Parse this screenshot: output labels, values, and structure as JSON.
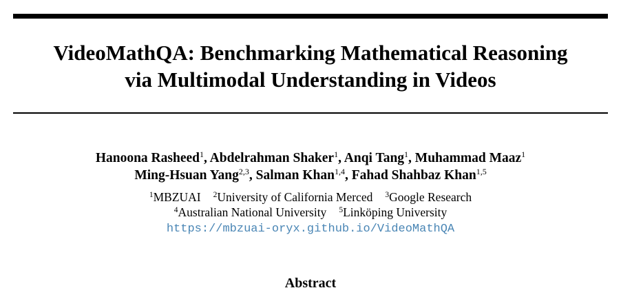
{
  "title": {
    "line1": "VideoMathQA: Benchmarking Mathematical Reasoning",
    "line2": "via Multimodal Understanding in Videos"
  },
  "authors": {
    "line1": [
      {
        "name": "Hanoona Rasheed",
        "aff": "1",
        "sep": ", "
      },
      {
        "name": "Abdelrahman Shaker",
        "aff": "1",
        "sep": ", "
      },
      {
        "name": "Anqi Tang",
        "aff": "1",
        "sep": ", "
      },
      {
        "name": "Muhammad Maaz",
        "aff": "1",
        "sep": ""
      }
    ],
    "line2": [
      {
        "name": "Ming-Hsuan Yang",
        "aff": "2,3",
        "sep": ", "
      },
      {
        "name": "Salman Khan",
        "aff": "1,4",
        "sep": ", "
      },
      {
        "name": "Fahad Shahbaz Khan",
        "aff": "1,5",
        "sep": ""
      }
    ]
  },
  "affiliations": {
    "line1": [
      {
        "num": "1",
        "name": "MBZUAI"
      },
      {
        "num": "2",
        "name": "University of California Merced"
      },
      {
        "num": "3",
        "name": "Google Research"
      }
    ],
    "line2": [
      {
        "num": "4",
        "name": "Australian National University"
      },
      {
        "num": "5",
        "name": "Linköping University"
      }
    ]
  },
  "project_url": "https://mbzuai-oryx.github.io/VideoMathQA",
  "abstract_heading": "Abstract",
  "colors": {
    "link": "#4a86b5",
    "text": "#000000"
  }
}
